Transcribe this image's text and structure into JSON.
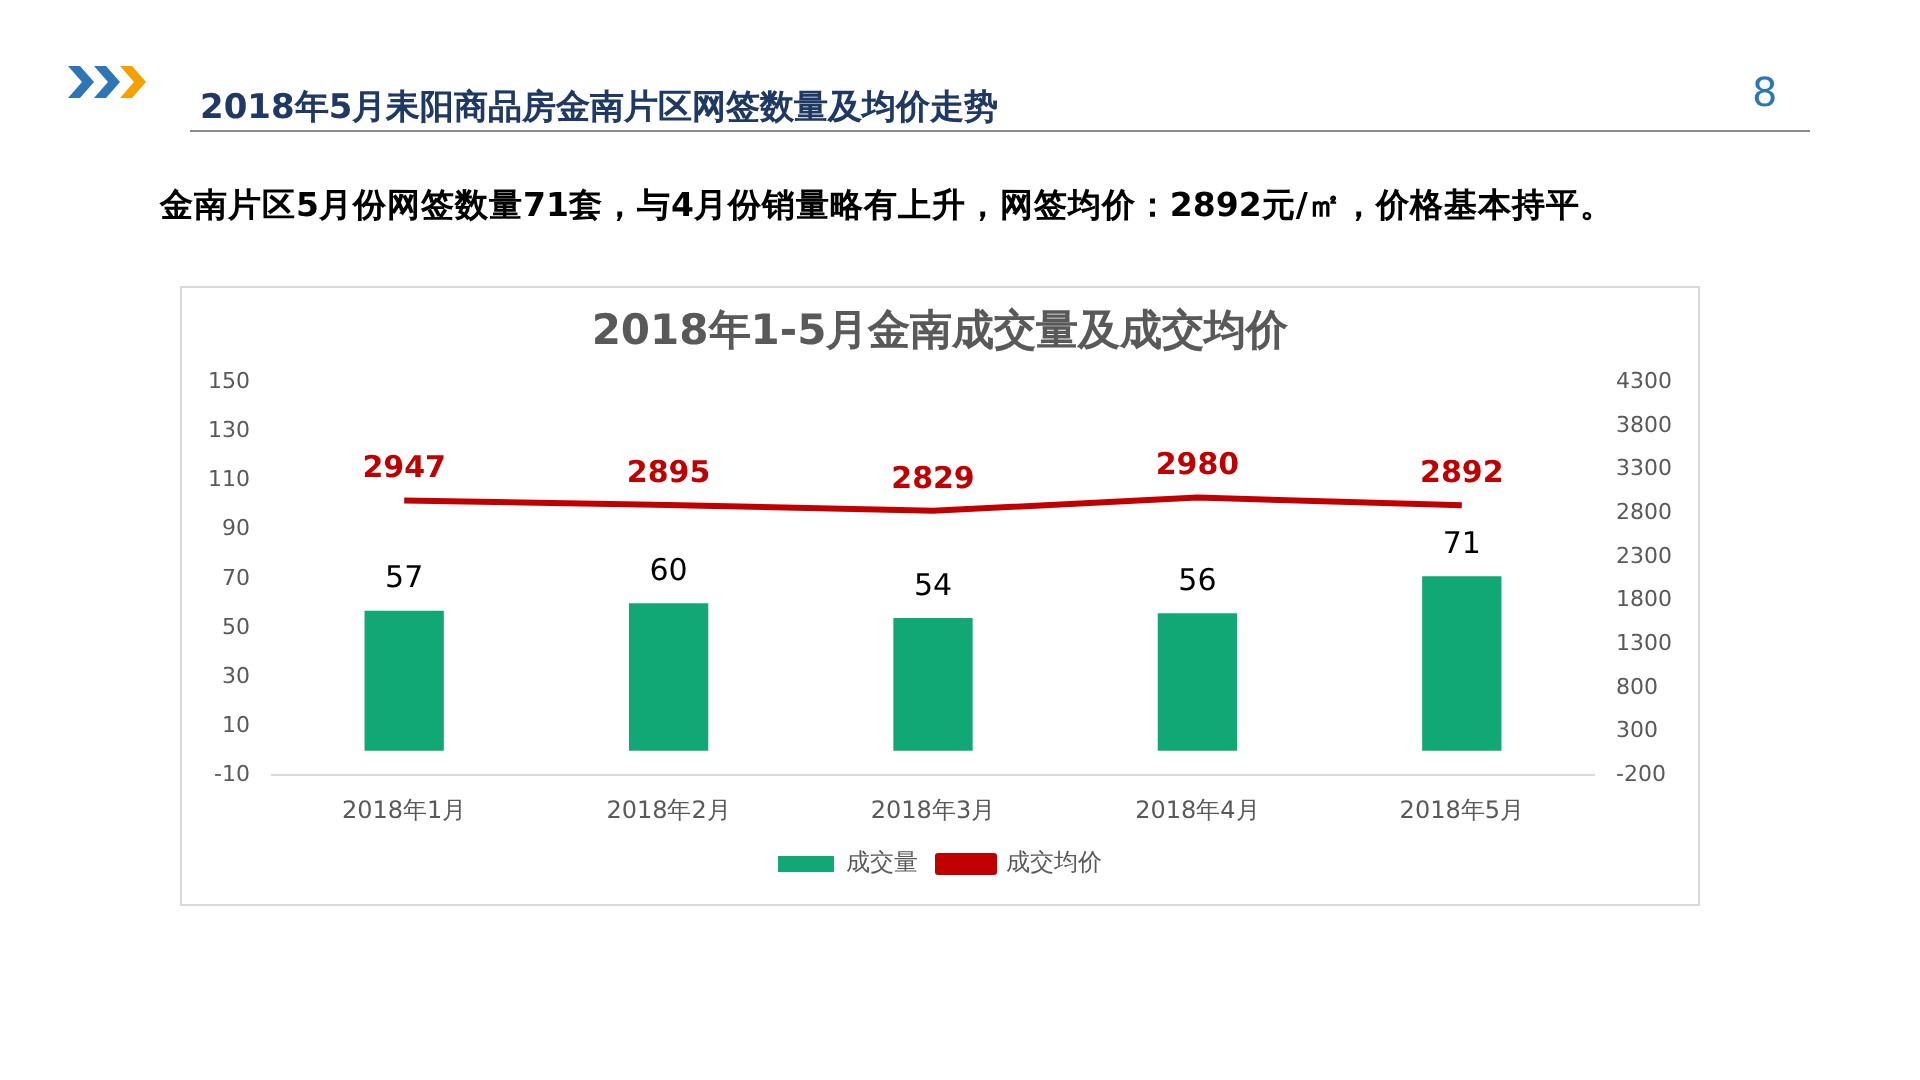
{
  "chart_data": {
    "type": "bar",
    "title": "2018年1-5月金南成交量及成交均价",
    "subtitle": "金南片区5月份网签数量71套，与4月份销量略有上升，网签均价：2892元/㎡，价格基本持平。",
    "annotations": [
      "2018年5月耒阳商品房金南片区网签数量及均价走势",
      "8"
    ],
    "categories": [
      "2018年1月",
      "2018年2月",
      "2018年3月",
      "2018年4月",
      "2018年5月"
    ],
    "series": [
      {
        "name": "成交量",
        "color": "#12a876",
        "values": [
          57,
          60,
          54,
          56,
          71
        ]
      },
      {
        "name": "成交均价",
        "type": "line",
        "axis": "y2",
        "color": "#c00000",
        "values": [
          2947,
          2895,
          2829,
          2980,
          2892
        ]
      }
    ],
    "ylim": [
      -10,
      150
    ],
    "yticks": [
      -10,
      10,
      30,
      50,
      70,
      90,
      110,
      130,
      150
    ],
    "y2lim": [
      -200,
      4300
    ],
    "y2ticks": [
      -200,
      300,
      800,
      1300,
      1800,
      2300,
      2800,
      3300,
      3800,
      4300
    ],
    "data_labels": true,
    "legend": "bottom",
    "grid": false
  }
}
